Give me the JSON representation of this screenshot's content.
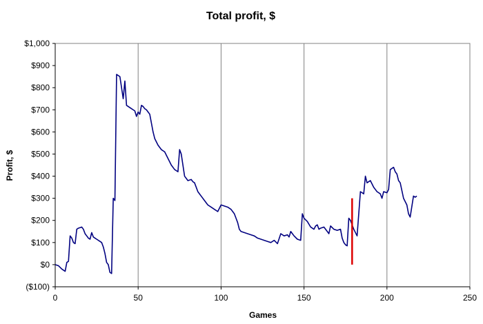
{
  "chart_data": {
    "type": "line",
    "title": "Total profit, $",
    "xlabel": "Games",
    "ylabel": "Profit, $",
    "xlim": [
      0,
      250
    ],
    "ylim": [
      -100,
      1000
    ],
    "x_ticks": [
      0,
      50,
      100,
      150,
      200,
      250
    ],
    "x_tick_labels": [
      "0",
      "50",
      "100",
      "150",
      "200",
      "250"
    ],
    "y_ticks": [
      -100,
      0,
      100,
      200,
      300,
      400,
      500,
      600,
      700,
      800,
      900,
      1000
    ],
    "y_tick_labels": [
      "($100)",
      "$0",
      "$100",
      "$200",
      "$300",
      "$400",
      "$500",
      "$600",
      "$700",
      "$800",
      "$900",
      "$1,000"
    ],
    "negative_tick_color": "#cc0000",
    "grid": "vertical",
    "legend": "none",
    "series": [
      {
        "color": "#000080",
        "x": [
          0,
          2,
          4,
          6,
          7,
          8,
          9,
          10,
          11,
          12,
          13,
          14,
          16,
          17,
          18,
          19,
          20,
          21,
          22,
          23,
          24,
          25,
          27,
          28,
          29,
          30,
          31,
          32,
          33,
          34,
          35,
          36,
          37,
          38,
          39,
          40,
          41,
          42,
          43,
          44,
          45,
          46,
          47,
          48,
          49,
          50,
          51,
          52,
          53,
          54,
          55,
          56,
          57,
          58,
          59,
          60,
          62,
          64,
          66,
          68,
          70,
          72,
          74,
          75,
          76,
          78,
          79,
          80,
          82,
          83,
          84,
          85,
          86,
          87,
          88,
          90,
          92,
          94,
          96,
          98,
          100,
          102,
          104,
          106,
          107,
          108,
          109,
          110,
          111,
          112,
          114,
          116,
          118,
          120,
          122,
          124,
          126,
          128,
          130,
          132,
          134,
          136,
          138,
          140,
          141,
          142,
          143,
          144,
          146,
          148,
          149,
          150,
          152,
          154,
          156,
          157,
          158,
          159,
          160,
          162,
          164,
          165,
          166,
          168,
          170,
          172,
          173,
          174,
          175,
          176,
          177,
          178,
          179,
          180,
          182,
          184,
          186,
          187,
          188,
          190,
          192,
          193,
          194,
          196,
          197,
          198,
          200,
          201,
          202,
          204,
          205,
          206,
          207,
          208,
          210,
          212,
          213,
          214,
          216,
          217,
          218
        ],
        "y": [
          0,
          -5,
          -20,
          -30,
          10,
          15,
          130,
          120,
          100,
          95,
          160,
          165,
          170,
          160,
          140,
          130,
          120,
          115,
          145,
          125,
          120,
          115,
          105,
          100,
          80,
          50,
          10,
          0,
          -35,
          -40,
          300,
          290,
          860,
          855,
          850,
          800,
          750,
          830,
          720,
          715,
          710,
          705,
          700,
          695,
          670,
          690,
          680,
          720,
          715,
          705,
          700,
          690,
          680,
          640,
          600,
          570,
          540,
          520,
          510,
          480,
          450,
          430,
          420,
          520,
          500,
          400,
          390,
          380,
          385,
          375,
          370,
          350,
          330,
          320,
          310,
          290,
          270,
          260,
          250,
          240,
          270,
          265,
          260,
          250,
          240,
          230,
          210,
          190,
          160,
          150,
          145,
          140,
          135,
          130,
          120,
          115,
          110,
          105,
          100,
          110,
          95,
          140,
          130,
          135,
          125,
          150,
          140,
          130,
          115,
          110,
          230,
          210,
          195,
          170,
          160,
          175,
          180,
          160,
          165,
          170,
          150,
          140,
          175,
          160,
          155,
          160,
          120,
          100,
          90,
          85,
          210,
          200,
          180,
          160,
          130,
          330,
          320,
          400,
          370,
          380,
          350,
          340,
          330,
          320,
          300,
          330,
          325,
          340,
          430,
          440,
          420,
          410,
          380,
          370,
          300,
          270,
          230,
          215,
          310,
          305,
          310
        ]
      }
    ],
    "annotations": [
      {
        "type": "vertical-line",
        "x": 179,
        "y_from": 0,
        "y_to": 300,
        "color": "#dd0000"
      }
    ]
  }
}
